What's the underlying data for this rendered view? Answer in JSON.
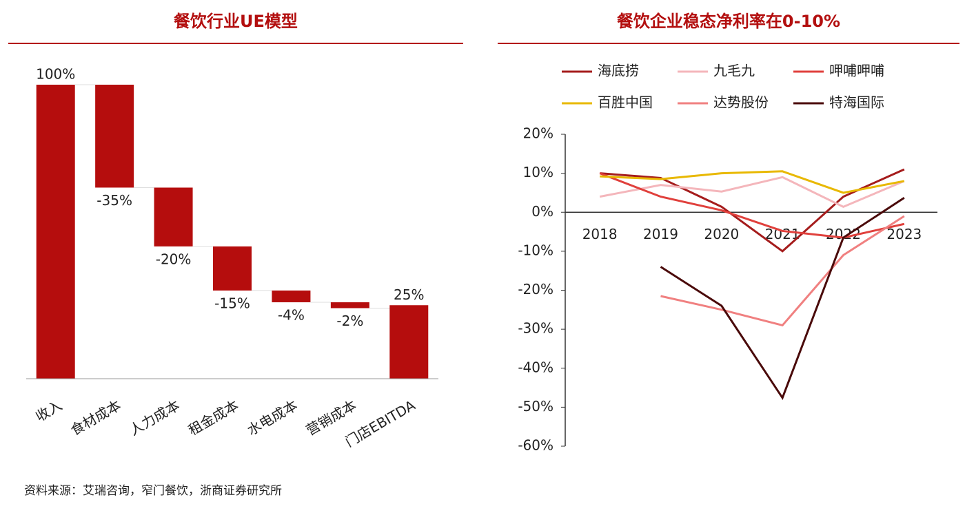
{
  "chart_data": [
    {
      "type": "waterfall",
      "title": "餐饮行业UE模型",
      "categories": [
        "收入",
        "食材成本",
        "人力成本",
        "租金成本",
        "水电成本",
        "营销成本",
        "门店EBITDA"
      ],
      "values": [
        100,
        -35,
        -20,
        -15,
        -4,
        -2,
        25
      ],
      "value_labels": [
        "100%",
        "-35%",
        "-20%",
        "-15%",
        "-4%",
        "-2%",
        "25%"
      ],
      "color": "#b50d0d",
      "ylim": [
        0,
        100
      ]
    },
    {
      "type": "line",
      "title": "餐饮企业稳态净利率在0-10%",
      "categories": [
        "2018",
        "2019",
        "2020",
        "2021",
        "2022",
        "2023"
      ],
      "series": [
        {
          "name": "海底捞",
          "color": "#a51c1c",
          "values": [
            10,
            8.8,
            1.4,
            -10,
            4,
            11
          ]
        },
        {
          "name": "九毛九",
          "color": "#f4b6bb",
          "values": [
            4,
            7,
            5.3,
            9,
            1.4,
            8
          ]
        },
        {
          "name": "呷哺呷哺",
          "color": "#e0403c",
          "values": [
            10,
            4,
            0.5,
            -4.8,
            -6.5,
            -3
          ]
        },
        {
          "name": "百胜中国",
          "color": "#e8b800",
          "values": [
            9.2,
            8.5,
            10,
            10.5,
            5,
            8
          ]
        },
        {
          "name": "达势股份",
          "color": "#f08080",
          "values": [
            null,
            -21.5,
            -25,
            -29,
            -11,
            -1
          ]
        },
        {
          "name": "特海国际",
          "color": "#4a0a0a",
          "values": [
            null,
            -14,
            -24,
            -47.6,
            -6.5,
            3.7
          ]
        }
      ],
      "ylim": [
        -60,
        20
      ],
      "yticks": [
        {
          "value": 20,
          "label": "20%"
        },
        {
          "value": 10,
          "label": "10%"
        },
        {
          "value": 0,
          "label": "0%"
        },
        {
          "value": -10,
          "label": "-10%"
        },
        {
          "value": -20,
          "label": "-20%"
        },
        {
          "value": -30,
          "label": "-30%"
        },
        {
          "value": -40,
          "label": "-40%"
        },
        {
          "value": -50,
          "label": "-50%"
        },
        {
          "value": -60,
          "label": "-60%"
        }
      ]
    }
  ],
  "source": "资料来源：艾瑞咨询，窄门餐饮，浙商证券研究所"
}
